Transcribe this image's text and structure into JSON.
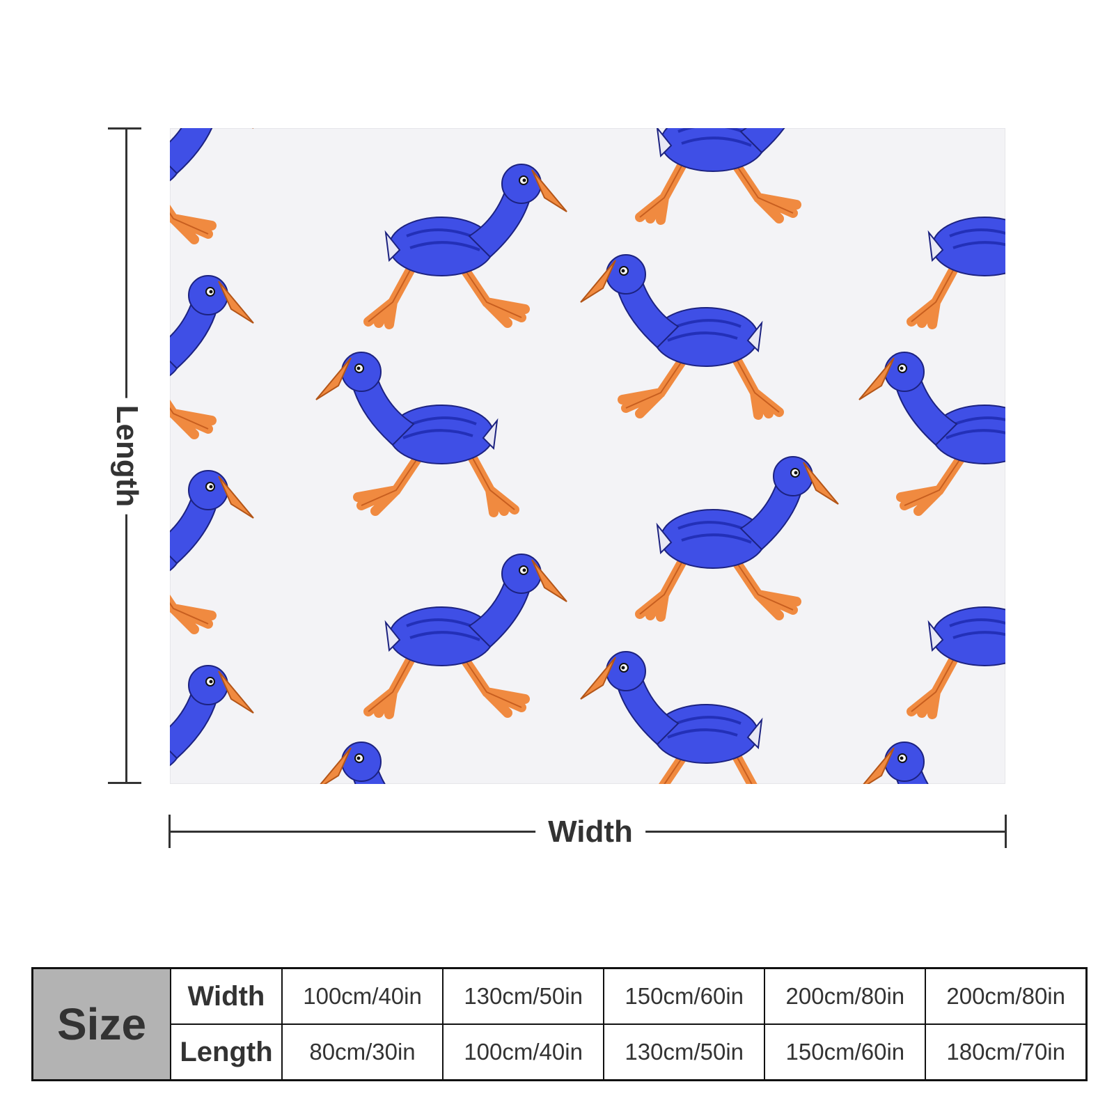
{
  "product": {
    "pattern_icon": "pukeko-bird-icon",
    "colors": {
      "bird_body": "#3f4fe6",
      "bird_dark": "#2330b8",
      "bird_legs": "#f08a40",
      "blanket_bg": "#f3f3f6",
      "ink": "#333333"
    }
  },
  "dimensions": {
    "length_label": "Length",
    "width_label": "Width"
  },
  "size_table": {
    "header": "Size",
    "rows": [
      {
        "label": "Width",
        "values": [
          "100cm/40in",
          "130cm/50in",
          "150cm/60in",
          "200cm/80in",
          "200cm/80in"
        ]
      },
      {
        "label": "Length",
        "values": [
          "80cm/30in",
          "100cm/40in",
          "130cm/50in",
          "150cm/60in",
          "180cm/70in"
        ]
      }
    ]
  }
}
